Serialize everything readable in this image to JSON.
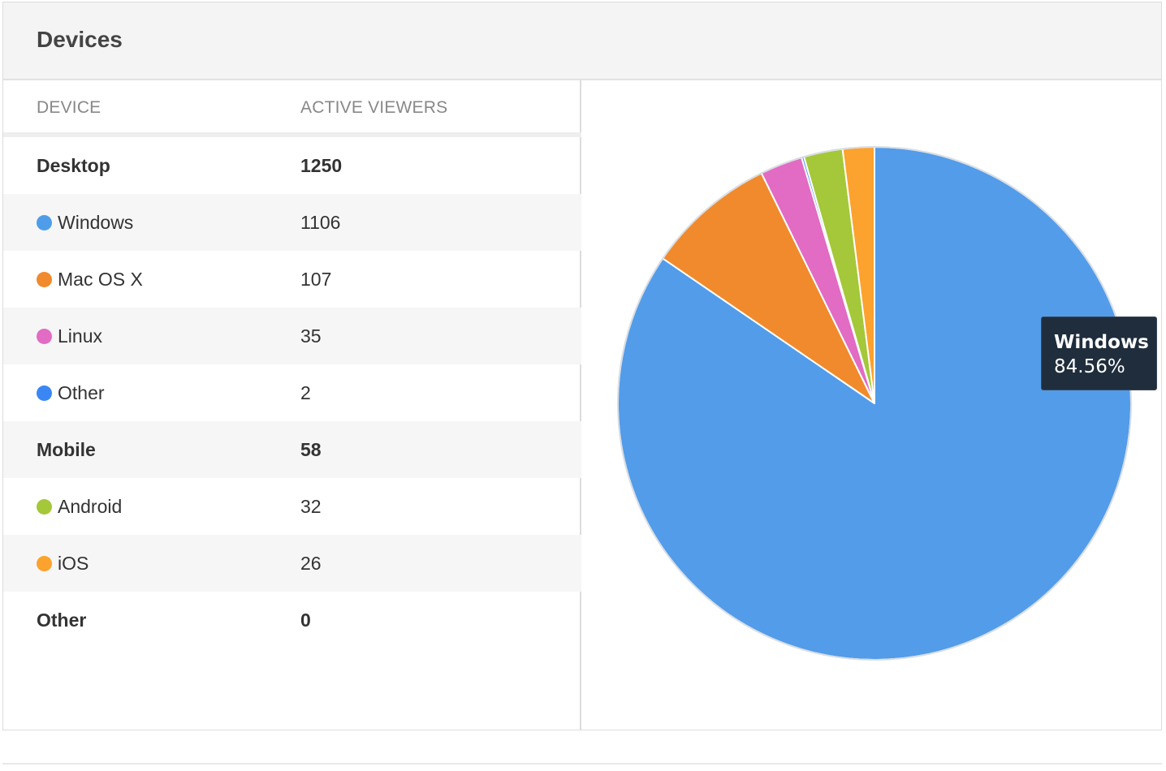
{
  "panel": {
    "title": "Devices"
  },
  "table": {
    "headers": {
      "device": "DEVICE",
      "viewers": "ACTIVE VIEWERS"
    },
    "rows": [
      {
        "label": "Desktop",
        "value": "1250",
        "group": true,
        "color": null
      },
      {
        "label": "Windows",
        "value": "1106",
        "group": false,
        "color": "#4f9de9"
      },
      {
        "label": "Mac OS X",
        "value": "107",
        "group": false,
        "color": "#f08a2c"
      },
      {
        "label": "Linux",
        "value": "35",
        "group": false,
        "color": "#e26bc3"
      },
      {
        "label": "Other",
        "value": "2",
        "group": false,
        "color": "#3b86f5"
      },
      {
        "label": "Mobile",
        "value": "58",
        "group": true,
        "color": null
      },
      {
        "label": "Android",
        "value": "32",
        "group": false,
        "color": "#a4c839"
      },
      {
        "label": "iOS",
        "value": "26",
        "group": false,
        "color": "#fca22e"
      },
      {
        "label": "Other",
        "value": "0",
        "group": true,
        "color": null
      }
    ]
  },
  "tooltip": {
    "name": "Windows",
    "value": "84.56%"
  },
  "chart_data": {
    "type": "pie",
    "categories": [
      "Windows",
      "Mac OS X",
      "Linux",
      "Other",
      "Android",
      "iOS"
    ],
    "values": [
      1106,
      107,
      35,
      2,
      32,
      26
    ],
    "colors": [
      "#529cea",
      "#f08a2c",
      "#e26bc3",
      "#3b86f5",
      "#a4c839",
      "#fca22e"
    ],
    "start_angle_deg": 0,
    "direction": "clockwise",
    "highlighted": "Windows"
  }
}
